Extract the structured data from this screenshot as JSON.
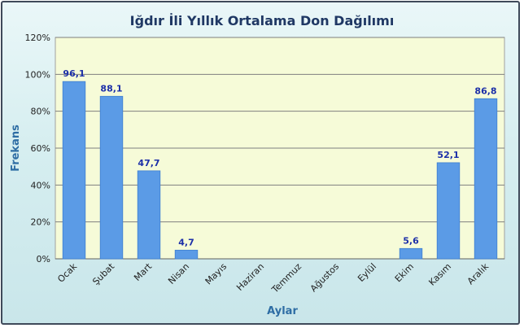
{
  "chart_data": {
    "type": "bar",
    "title": "Iğdır İli Yıllık Ortalama Don Dağılımı",
    "xlabel": "Aylar",
    "ylabel": "Frekans",
    "ylim": [
      0,
      120
    ],
    "yticks": [
      "0%",
      "20%",
      "40%",
      "60%",
      "80%",
      "100%",
      "120%"
    ],
    "ytick_values": [
      0,
      20,
      40,
      60,
      80,
      100,
      120
    ],
    "categories": [
      "Ocak",
      "Şubat",
      "Mart",
      "Nisan",
      "Mayıs",
      "Haziran",
      "Temmuz",
      "Ağustos",
      "Eylül",
      "Ekim",
      "Kasım",
      "Aralık"
    ],
    "values": [
      96.1,
      88.1,
      47.7,
      4.7,
      null,
      null,
      null,
      null,
      null,
      5.6,
      52.1,
      86.8
    ],
    "data_labels": [
      "96,1",
      "88,1",
      "47,7",
      "4,7",
      "",
      "",
      "",
      "",
      "",
      "5,6",
      "52,1",
      "86,8"
    ],
    "grid": true,
    "legend": "none",
    "colors": {
      "bar": "#5b9be6",
      "bar_edge": "#3f7fd0",
      "plot_bg": "#f6fbd8",
      "gridline": "#7f7f7f",
      "title": "#1f3864",
      "axis_title": "#2e6da4",
      "data_label": "#1c2fa8"
    }
  }
}
